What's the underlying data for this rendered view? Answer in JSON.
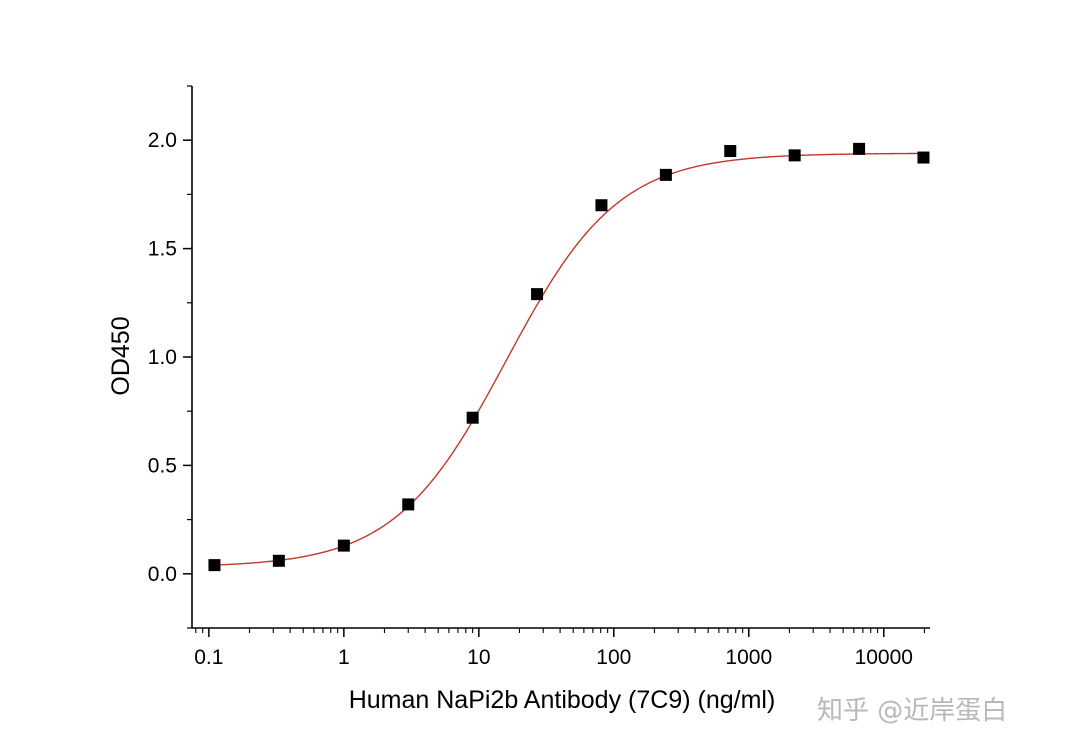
{
  "chart_data": {
    "type": "scatter",
    "title": "",
    "xlabel": "Human NaPi2b  Antibody (7C9) (ng/ml)",
    "ylabel": "OD450",
    "x_scale": "log",
    "xlim": [
      0.075,
      22000
    ],
    "ylim": [
      -0.25,
      2.25
    ],
    "x_ticks": [
      0.1,
      1,
      10,
      100,
      1000,
      10000
    ],
    "x_tick_labels": [
      "0.1",
      "1",
      "10",
      "100",
      "1000",
      "10000"
    ],
    "y_ticks": [
      0.0,
      0.5,
      1.0,
      1.5,
      2.0
    ],
    "y_tick_labels": [
      "0.0",
      "0.5",
      "1.0",
      "1.5",
      "2.0"
    ],
    "grid": false,
    "legend": "none",
    "series": [
      {
        "marker": "square",
        "color": "#000000",
        "x": [
          0.11,
          0.33,
          1.0,
          3.0,
          9.0,
          27,
          81,
          243,
          729,
          2187,
          6561,
          19683
        ],
        "y": [
          0.04,
          0.06,
          0.13,
          0.32,
          0.72,
          1.29,
          1.7,
          1.84,
          1.95,
          1.93,
          1.96,
          1.92
        ]
      }
    ],
    "fit_curve": {
      "model": "4PL",
      "color": "#c0392b",
      "bottom": 0.03,
      "top": 1.94,
      "ec50": 16,
      "hill": 1.05
    }
  },
  "watermark": "知乎 @近岸蛋白"
}
